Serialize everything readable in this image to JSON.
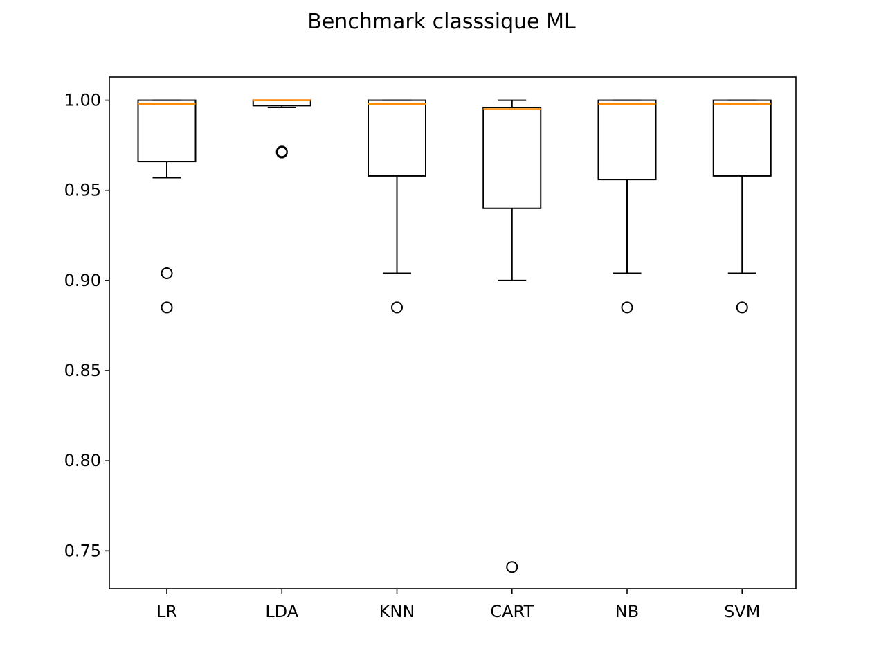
{
  "chart_data": {
    "type": "box",
    "title": "Benchmark classsique ML",
    "xlabel": "",
    "ylabel": "",
    "ylim": [
      0.729,
      1.0129
    ],
    "yticks": [
      {
        "value": 0.75,
        "label": "0.75"
      },
      {
        "value": 0.8,
        "label": "0.80"
      },
      {
        "value": 0.85,
        "label": "0.85"
      },
      {
        "value": 0.9,
        "label": "0.90"
      },
      {
        "value": 0.95,
        "label": "0.95"
      },
      {
        "value": 1.0,
        "label": "1.00"
      }
    ],
    "grid": false,
    "categories": [
      "LR",
      "LDA",
      "KNN",
      "CART",
      "NB",
      "SVM"
    ],
    "boxes": [
      {
        "label": "LR",
        "whisker_low": 0.957,
        "q1": 0.966,
        "median": 0.998,
        "q3": 1.0,
        "whisker_high": 1.0,
        "fliers": [
          0.904,
          0.885
        ]
      },
      {
        "label": "LDA",
        "whisker_low": 0.996,
        "q1": 0.997,
        "median": 1.0,
        "q3": 1.0,
        "whisker_high": 1.0,
        "fliers": [
          0.971,
          0.9715
        ]
      },
      {
        "label": "KNN",
        "whisker_low": 0.904,
        "q1": 0.958,
        "median": 0.998,
        "q3": 1.0,
        "whisker_high": 1.0,
        "fliers": [
          0.885
        ]
      },
      {
        "label": "CART",
        "whisker_low": 0.9,
        "q1": 0.94,
        "median": 0.995,
        "q3": 0.996,
        "whisker_high": 1.0,
        "fliers": [
          0.741
        ]
      },
      {
        "label": "NB",
        "whisker_low": 0.904,
        "q1": 0.956,
        "median": 0.998,
        "q3": 1.0,
        "whisker_high": 1.0,
        "fliers": [
          0.885
        ]
      },
      {
        "label": "SVM",
        "whisker_low": 0.904,
        "q1": 0.958,
        "median": 0.998,
        "q3": 1.0,
        "whisker_high": 1.0,
        "fliers": [
          0.885
        ]
      }
    ],
    "colors": {
      "median": "#ff8c00",
      "box": "#000000"
    }
  }
}
